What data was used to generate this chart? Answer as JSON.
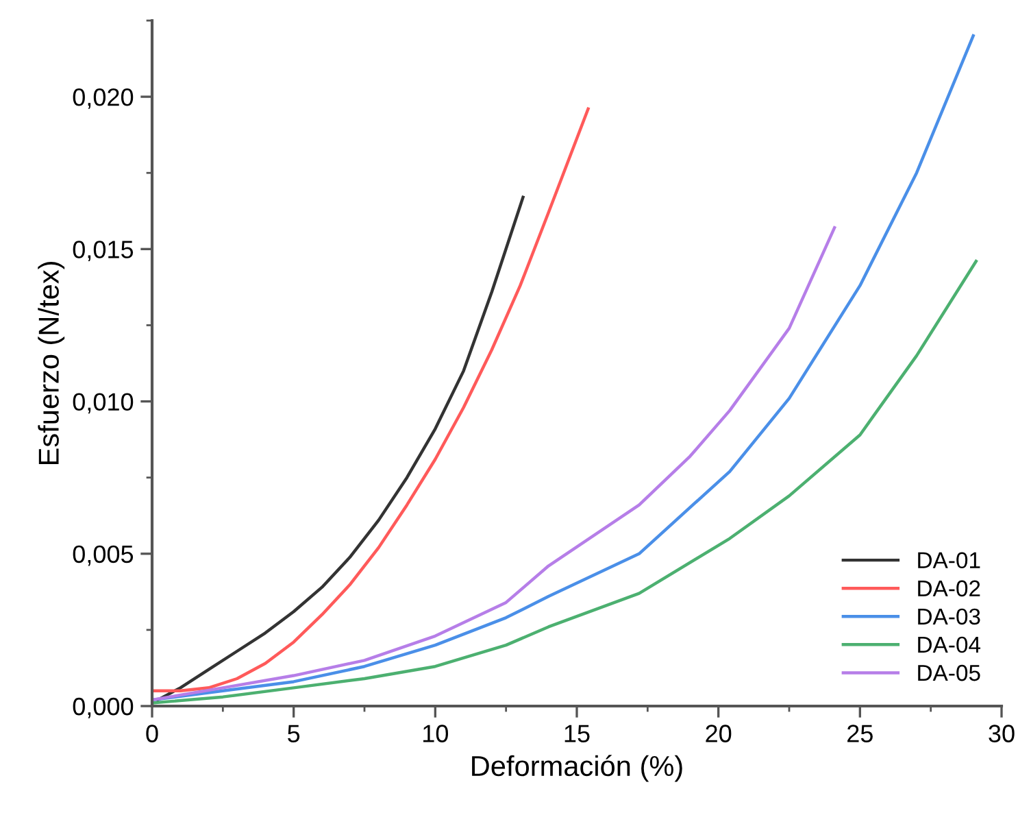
{
  "chart_data": {
    "type": "line",
    "xlabel": "Deformación (%)",
    "ylabel": "Esfuerzo (N/tex)",
    "xlim": [
      0,
      30
    ],
    "xticks": [
      0,
      5,
      10,
      15,
      20,
      25,
      30
    ],
    "ylim": [
      0,
      0.0225
    ],
    "yticks": [
      {
        "value": 0,
        "label": "0,000"
      },
      {
        "value": 0.005,
        "label": "0,005"
      },
      {
        "value": 0.01,
        "label": "0,010"
      },
      {
        "value": 0.015,
        "label": "0,015"
      },
      {
        "value": 0.02,
        "label": "0,020"
      }
    ],
    "grid": false,
    "legend": "bottom right",
    "marker": "none",
    "line_style": "solid",
    "series": [
      {
        "name": "DA-01",
        "color": "#333333",
        "x": [
          0.2,
          1,
          2,
          3,
          4,
          5,
          6,
          7,
          8,
          9,
          10,
          11,
          12,
          13.1
        ],
        "values": [
          0.0002,
          0.0006,
          0.0012,
          0.0018,
          0.0024,
          0.0031,
          0.0039,
          0.0049,
          0.0061,
          0.0075,
          0.0091,
          0.011,
          0.0136,
          0.0167
        ]
      },
      {
        "name": "DA-02",
        "color": "#ff5a5a",
        "x": [
          0,
          1,
          2,
          3,
          4,
          5,
          6,
          7,
          8,
          9,
          10,
          11,
          12,
          13,
          14,
          15.4
        ],
        "values": [
          0.0005,
          0.0005,
          0.0006,
          0.0009,
          0.0014,
          0.0021,
          0.003,
          0.004,
          0.0052,
          0.0066,
          0.0081,
          0.0098,
          0.0117,
          0.0138,
          0.0162,
          0.0196
        ]
      },
      {
        "name": "DA-03",
        "color": "#4a8fe8",
        "x": [
          0,
          2.5,
          5,
          7.5,
          10,
          12.5,
          14,
          17.2,
          20.4,
          22.5,
          25,
          27,
          29
        ],
        "values": [
          0.0002,
          0.0005,
          0.0008,
          0.0013,
          0.002,
          0.0029,
          0.0036,
          0.005,
          0.0077,
          0.0101,
          0.0138,
          0.0175,
          0.022
        ]
      },
      {
        "name": "DA-04",
        "color": "#4cb070",
        "x": [
          0,
          2.5,
          5,
          7.5,
          10,
          12.5,
          14,
          17.2,
          20.4,
          22.5,
          25,
          27,
          29.1
        ],
        "values": [
          0.0001,
          0.0003,
          0.0006,
          0.0009,
          0.0013,
          0.002,
          0.0026,
          0.0037,
          0.0055,
          0.0069,
          0.0089,
          0.0115,
          0.0146
        ]
      },
      {
        "name": "DA-05",
        "color": "#b67ee8",
        "x": [
          0,
          2.5,
          5,
          7.5,
          10,
          12.5,
          14,
          17.2,
          19,
          20.4,
          22.5,
          24.1
        ],
        "values": [
          0.0002,
          0.0006,
          0.001,
          0.0015,
          0.0023,
          0.0034,
          0.0046,
          0.0066,
          0.0082,
          0.0097,
          0.0124,
          0.0157
        ]
      }
    ]
  }
}
